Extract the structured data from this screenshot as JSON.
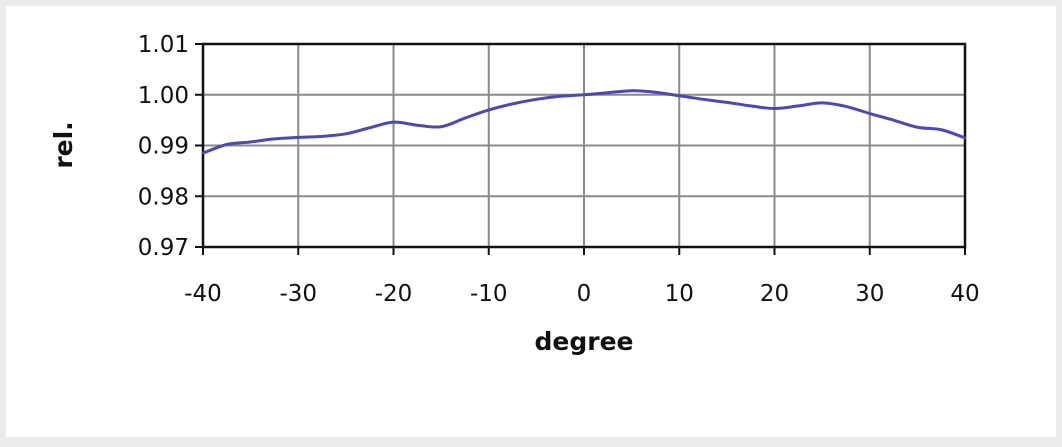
{
  "chart_data": {
    "type": "line",
    "title": "",
    "xlabel": "degree",
    "ylabel": "rel.",
    "xlim": [
      -40,
      40
    ],
    "ylim": [
      0.97,
      1.01
    ],
    "x_ticks": [
      -40,
      -30,
      -20,
      -10,
      0,
      10,
      20,
      30,
      40
    ],
    "x_tick_labels": [
      "-40",
      "-30",
      "-20",
      "-10",
      "0",
      "10",
      "20",
      "30",
      "40"
    ],
    "y_ticks": [
      0.97,
      0.98,
      0.99,
      1.0,
      1.01
    ],
    "y_tick_labels": [
      "0.97",
      "0.98",
      "0.99",
      "1.00",
      "1.01"
    ],
    "grid": true,
    "legend": "none",
    "series": [
      {
        "color": "#4a4ab0",
        "x": [
          -40,
          -37.5,
          -35,
          -32.5,
          -30,
          -27.5,
          -25,
          -22.5,
          -20,
          -17.5,
          -15,
          -12.5,
          -10,
          -7.5,
          -5,
          -2.5,
          0,
          2.5,
          5,
          7.5,
          10,
          12.5,
          15,
          17.5,
          20,
          22.5,
          25,
          27.5,
          30,
          32.5,
          35,
          37.5,
          40
        ],
        "values": [
          0.9885,
          0.9902,
          0.9907,
          0.9913,
          0.9916,
          0.9918,
          0.9923,
          0.9935,
          0.9946,
          0.994,
          0.9937,
          0.9954,
          0.997,
          0.9982,
          0.9991,
          0.9997,
          1.0,
          1.0004,
          1.0008,
          1.0005,
          0.9998,
          0.9991,
          0.9985,
          0.9978,
          0.9973,
          0.9978,
          0.9984,
          0.9977,
          0.9963,
          0.995,
          0.9936,
          0.9931,
          0.9915
        ]
      }
    ]
  }
}
